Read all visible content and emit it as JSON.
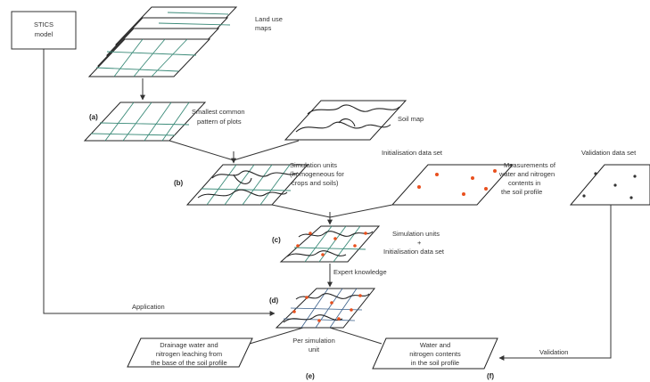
{
  "stics": {
    "line1": "STICS",
    "line2": "model"
  },
  "land_use": {
    "line1": "Land use",
    "line2": "maps"
  },
  "smallest": {
    "line1": "Smallest common",
    "line2": "pattern of plots"
  },
  "soil_map": "Soil map",
  "sim_units": {
    "line1": "Simulation units",
    "line2": "(homogeneous for",
    "line3": "crops and soils)"
  },
  "init_set": "Initialisation data set",
  "measurements": {
    "line1": "Measurements of",
    "line2": "water and nitrogen",
    "line3": "contents in",
    "line4": "the soil profile"
  },
  "validation_set": "Validation data set",
  "sim_init": {
    "line1": "Simulation units",
    "line2": "+",
    "line3": "Initialisation data set"
  },
  "expert": "Expert knowledge",
  "application": "Application",
  "drainage": {
    "line1": "Drainage water and",
    "line2": "nitrogen leaching from",
    "line3": "the base of the soil profile"
  },
  "per_sim": {
    "line1": "Per simulation",
    "line2": "unit"
  },
  "water_n": {
    "line1": "Water and",
    "line2": "nitrogen contents",
    "line3": "in the soil profile"
  },
  "validation": "Validation",
  "labels": {
    "a": "(a)",
    "b": "(b)",
    "c": "(c)",
    "d": "(d)",
    "e": "(e)",
    "f": "(f)"
  }
}
